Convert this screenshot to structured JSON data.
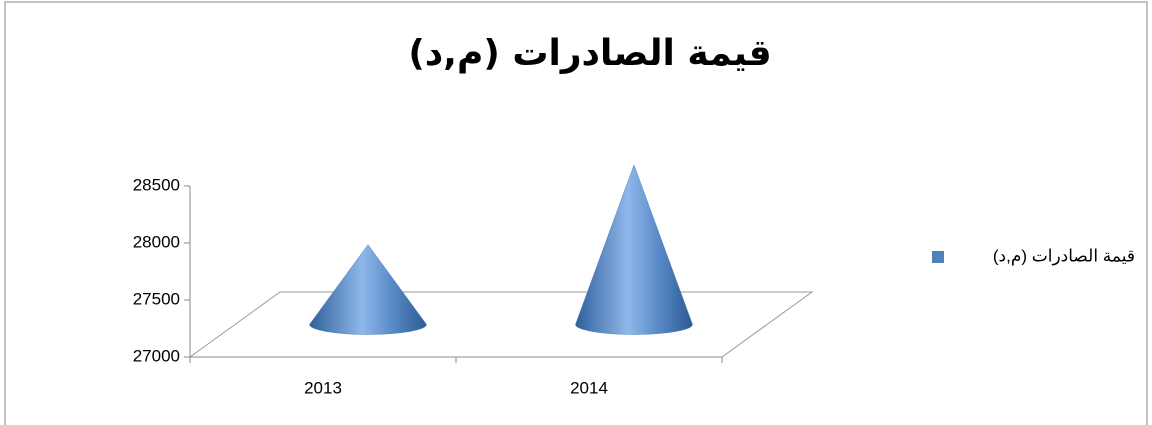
{
  "chart_data": {
    "type": "cone",
    "title": "قيمة الصادرات (م,د)",
    "categories": [
      "2013",
      "2014"
    ],
    "series": [
      {
        "name": "قيمة الصادرات (م,د)",
        "color": "#4f81bd",
        "values": [
          27700,
          28400
        ]
      }
    ],
    "ylim": [
      27000,
      28500
    ],
    "yticks": [
      27000,
      27500,
      28000,
      28500
    ],
    "legend": "right"
  }
}
